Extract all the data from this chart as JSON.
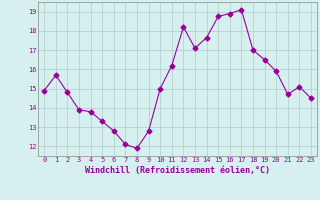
{
  "x": [
    0,
    1,
    2,
    3,
    4,
    5,
    6,
    7,
    8,
    9,
    10,
    11,
    12,
    13,
    14,
    15,
    16,
    17,
    18,
    19,
    20,
    21,
    22,
    23
  ],
  "y": [
    14.9,
    15.7,
    14.8,
    13.9,
    13.8,
    13.3,
    12.8,
    12.1,
    11.9,
    12.8,
    15.0,
    16.2,
    18.2,
    17.1,
    17.65,
    18.75,
    18.9,
    19.1,
    17.0,
    16.5,
    15.9,
    14.7,
    15.1,
    14.5
  ],
  "line_color": "#990099",
  "marker": "D",
  "marker_size": 2.5,
  "bg_color": "#d6f0f0",
  "grid_color": "#b0c8c8",
  "xlabel": "Windchill (Refroidissement éolien,°C)",
  "xlabel_color": "#990099",
  "tick_color": "#990099",
  "ylim": [
    11.5,
    19.5
  ],
  "xlim": [
    -0.5,
    23.5
  ],
  "yticks": [
    12,
    13,
    14,
    15,
    16,
    17,
    18,
    19
  ],
  "xticks": [
    0,
    1,
    2,
    3,
    4,
    5,
    6,
    7,
    8,
    9,
    10,
    11,
    12,
    13,
    14,
    15,
    16,
    17,
    18,
    19,
    20,
    21,
    22,
    23
  ],
  "tick_fontsize": 5.0,
  "xlabel_fontsize": 6.0
}
